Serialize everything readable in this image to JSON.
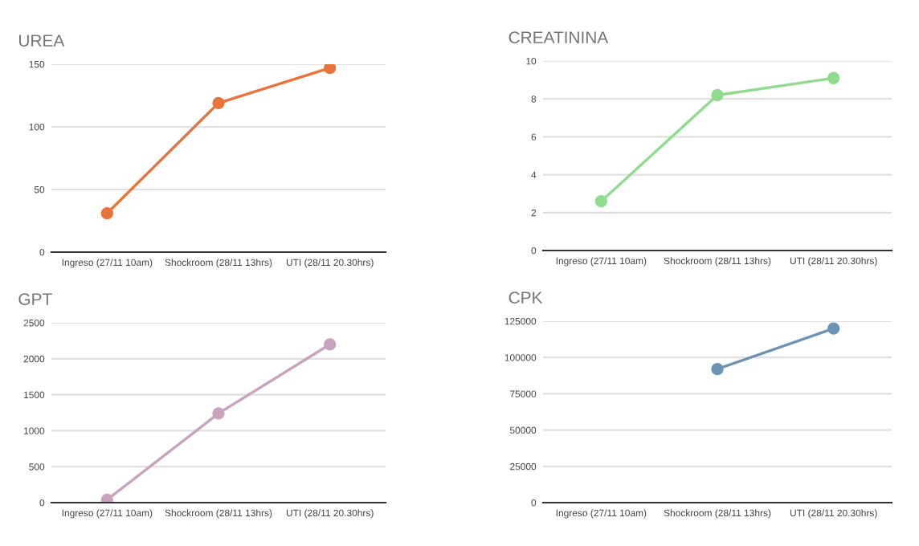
{
  "chart_data": [
    {
      "type": "line",
      "title": "UREA",
      "categories": [
        "Ingreso (27/11 10am)",
        "Shockroom (28/11 13hrs)",
        "UTI (28/11 20.30hrs)"
      ],
      "series": [
        {
          "color": "#e8743b",
          "values": [
            31,
            119,
            147
          ]
        }
      ],
      "ylim": [
        0,
        150
      ],
      "yticks": [
        0,
        50,
        100,
        150
      ],
      "grid": "y",
      "marker": "circle",
      "legend": false
    },
    {
      "type": "line",
      "title": "CREATININA",
      "categories": [
        "Ingreso (27/11 10am)",
        "Shockroom (28/11 13hrs)",
        "UTI (28/11 20.30hrs)"
      ],
      "series": [
        {
          "color": "#8fdc8c",
          "values": [
            2.6,
            8.2,
            9.1
          ]
        }
      ],
      "ylim": [
        0,
        10
      ],
      "yticks": [
        0,
        2,
        4,
        6,
        8,
        10
      ],
      "grid": "y",
      "marker": "circle",
      "legend": false
    },
    {
      "type": "line",
      "title": "GPT",
      "categories": [
        "Ingreso (27/11 10am)",
        "Shockroom (28/11 13hrs)",
        "UTI (28/11 20.30hrs)"
      ],
      "series": [
        {
          "color": "#c9a3bd",
          "values": [
            40,
            1240,
            2200
          ]
        }
      ],
      "ylim": [
        0,
        2500
      ],
      "yticks": [
        0,
        500,
        1000,
        1500,
        2000,
        2500
      ],
      "grid": "y",
      "marker": "circle",
      "legend": false
    },
    {
      "type": "line",
      "title": "CPK",
      "categories": [
        "Ingreso (27/11 10am)",
        "Shockroom (28/11 13hrs)",
        "UTI (28/11 20.30hrs)"
      ],
      "series": [
        {
          "color": "#6b93b5",
          "values": [
            null,
            92000,
            120000
          ]
        }
      ],
      "ylim": [
        0,
        125000
      ],
      "yticks": [
        0,
        25000,
        50000,
        75000,
        100000,
        125000
      ],
      "grid": "y",
      "marker": "circle",
      "legend": false
    }
  ]
}
